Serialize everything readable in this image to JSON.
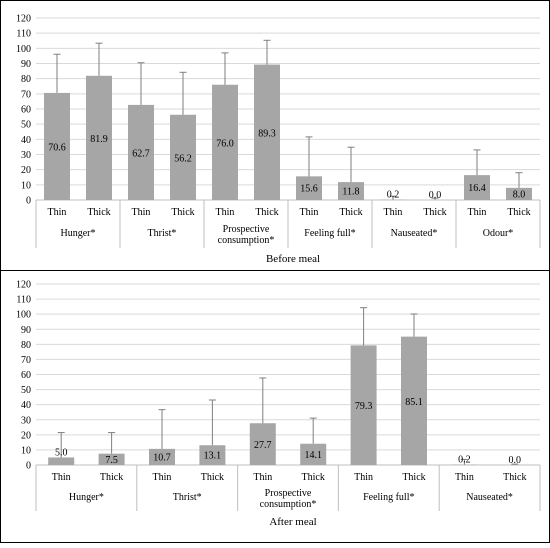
{
  "chart_data": [
    {
      "type": "bar",
      "title": "Before meal",
      "xlabel": "",
      "ylabel": "",
      "ylim": [
        0,
        120
      ],
      "yticks": [
        0,
        10,
        20,
        30,
        40,
        50,
        60,
        70,
        80,
        90,
        100,
        110,
        120
      ],
      "grid": true,
      "bar_color": "#a6a6a6",
      "groups": [
        {
          "label": "Hunger*",
          "bars": [
            {
              "label": "Thin",
              "value": 70.6,
              "value_label": "70.6",
              "error": 25.5
            },
            {
              "label": "Thick",
              "value": 81.9,
              "value_label": "81.9",
              "error": 21.5
            }
          ]
        },
        {
          "label": "Thrist*",
          "bars": [
            {
              "label": "Thin",
              "value": 62.7,
              "value_label": "62.7",
              "error": 27.8
            },
            {
              "label": "Thick",
              "value": 56.2,
              "value_label": "56.2",
              "error": 28.0
            }
          ]
        },
        {
          "label": "Prospective consumption*",
          "label_lines": [
            "Prospective",
            "consumption*"
          ],
          "bars": [
            {
              "label": "Thin",
              "value": 76.0,
              "value_label": "76.0",
              "error": 21.0
            },
            {
              "label": "Thick",
              "value": 89.3,
              "value_label": "89.3",
              "error": 16.0
            }
          ]
        },
        {
          "label": "Feeling full*",
          "bars": [
            {
              "label": "Thin",
              "value": 15.6,
              "value_label": "15.6",
              "error": 26.0
            },
            {
              "label": "Thick",
              "value": 11.8,
              "value_label": "11.8",
              "error": 23.0
            }
          ]
        },
        {
          "label": "Nauseated*",
          "bars": [
            {
              "label": "Thin",
              "value": 0.2,
              "value_label": "0.2",
              "error": 2.3
            },
            {
              "label": "Thick",
              "value": 0.0,
              "value_label": "0.0",
              "error": 1.2
            }
          ]
        },
        {
          "label": "Odour*",
          "bars": [
            {
              "label": "Thin",
              "value": 16.4,
              "value_label": "16.4",
              "error": 16.6
            },
            {
              "label": "Thick",
              "value": 8.0,
              "value_label": "8.0",
              "error": 10.0
            }
          ]
        }
      ]
    },
    {
      "type": "bar",
      "title": "After meal",
      "xlabel": "",
      "ylabel": "",
      "ylim": [
        0,
        120
      ],
      "yticks": [
        0,
        10,
        20,
        30,
        40,
        50,
        60,
        70,
        80,
        90,
        100,
        110,
        120
      ],
      "grid": true,
      "bar_color": "#a6a6a6",
      "groups": [
        {
          "label": "Hunger*",
          "bars": [
            {
              "label": "Thin",
              "value": 5.0,
              "value_label": "5.0",
              "error": 16.5
            },
            {
              "label": "Thick",
              "value": 7.5,
              "value_label": "7.5",
              "error": 14.0
            }
          ]
        },
        {
          "label": "Thrist*",
          "bars": [
            {
              "label": "Thin",
              "value": 10.7,
              "value_label": "10.7",
              "error": 26.0
            },
            {
              "label": "Thick",
              "value": 13.1,
              "value_label": "13.1",
              "error": 30.0
            }
          ]
        },
        {
          "label": "Prospective consumption*",
          "label_lines": [
            "Prospective",
            "consumption*"
          ],
          "bars": [
            {
              "label": "Thin",
              "value": 27.7,
              "value_label": "27.7",
              "error": 30.0
            },
            {
              "label": "Thick",
              "value": 14.1,
              "value_label": "14.1",
              "error": 17.0
            }
          ]
        },
        {
          "label": "Feeling full*",
          "bars": [
            {
              "label": "Thin",
              "value": 79.3,
              "value_label": "79.3",
              "error": 25.0
            },
            {
              "label": "Thick",
              "value": 85.1,
              "value_label": "85.1",
              "error": 15.0
            }
          ]
        },
        {
          "label": "Nauseated*",
          "bars": [
            {
              "label": "Thin",
              "value": 0.2,
              "value_label": "0.2",
              "error": 3.5
            },
            {
              "label": "Thick",
              "value": 0.0,
              "value_label": "0.0",
              "error": 0.6
            }
          ]
        }
      ]
    }
  ]
}
